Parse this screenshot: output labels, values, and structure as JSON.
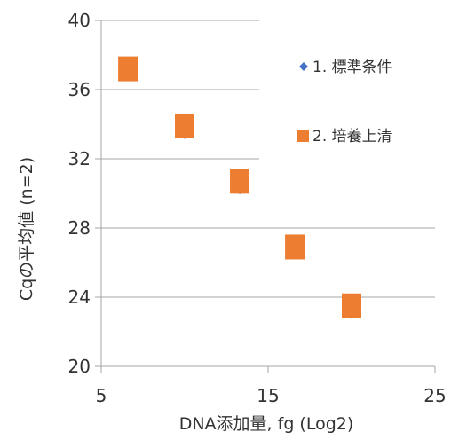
{
  "chart_data": {
    "type": "scatter",
    "xlabel": "DNA添加量, fg (Log2)",
    "ylabel": "Cqの平均値 (n=2)",
    "xlim": [
      5,
      25
    ],
    "ylim": [
      20,
      40
    ],
    "x_ticks": [
      "5",
      "15",
      "25"
    ],
    "y_ticks": [
      "20",
      "24",
      "28",
      "32",
      "36",
      "40"
    ],
    "grid": "horizontal",
    "legend_position": "right",
    "series": [
      {
        "name": "1. 標準条件",
        "marker": "diamond",
        "color": "#4472C4",
        "x": [
          6.6,
          10.0,
          13.3,
          16.6,
          20.0
        ],
        "y": [
          37.1,
          33.4,
          30.2,
          26.6,
          23.0
        ]
      },
      {
        "name": "2. 培養上清",
        "marker": "square",
        "color": "#ED7D31",
        "x": [
          6.6,
          10.0,
          13.3,
          16.6,
          20.0
        ],
        "y": [
          37.2,
          33.9,
          30.7,
          26.9,
          23.5
        ]
      }
    ]
  }
}
